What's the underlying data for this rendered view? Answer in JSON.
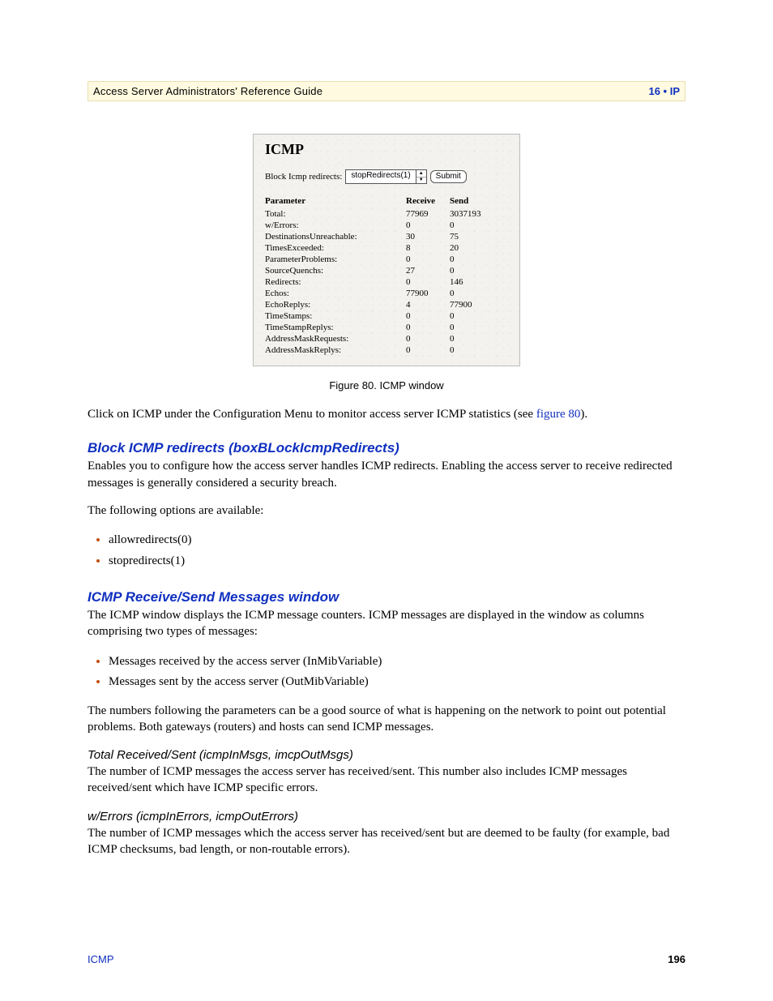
{
  "header": {
    "title": "Access Server Administrators' Reference Guide",
    "chapter": "16 • IP"
  },
  "figure": {
    "panel_title": "ICMP",
    "control_label": "Block Icmp redirects:",
    "select_value": "stopRedirects(1)",
    "submit_label": "Submit",
    "columns": {
      "param": "Parameter",
      "receive": "Receive",
      "send": "Send"
    },
    "rows": [
      {
        "param": "Total:",
        "receive": "77969",
        "send": "3037193"
      },
      {
        "param": "w/Errors:",
        "receive": "0",
        "send": "0"
      },
      {
        "param": "DestinationsUnreachable:",
        "receive": "30",
        "send": "75"
      },
      {
        "param": "TimesExceeded:",
        "receive": "8",
        "send": "20"
      },
      {
        "param": "ParameterProblems:",
        "receive": "0",
        "send": "0"
      },
      {
        "param": "SourceQuenchs:",
        "receive": "27",
        "send": "0"
      },
      {
        "param": "Redirects:",
        "receive": "0",
        "send": "146"
      },
      {
        "param": "Echos:",
        "receive": "77900",
        "send": "0"
      },
      {
        "param": "EchoReplys:",
        "receive": "4",
        "send": "77900"
      },
      {
        "param": "TimeStamps:",
        "receive": "0",
        "send": "0"
      },
      {
        "param": "TimeStampReplys:",
        "receive": "0",
        "send": "0"
      },
      {
        "param": "AddressMaskRequests:",
        "receive": "0",
        "send": "0"
      },
      {
        "param": "AddressMaskReplys:",
        "receive": "0",
        "send": "0"
      }
    ],
    "caption": "Figure 80. ICMP window"
  },
  "intro": {
    "prefix": "Click on ICMP under the ",
    "menu_label": "Configuration Menu",
    "mid": " to monitor access server ICMP statistics (see ",
    "link": "figure 80",
    "suffix": ")."
  },
  "section_block": {
    "heading": "Block ICMP redirects (boxBLockIcmpRedirects)",
    "para": "Enables you to configure how the access server handles ICMP redirects. Enabling the access server to receive redirected messages is generally considered a security breach.",
    "options_label": "The following options are available:",
    "options": [
      "allowredirects(0)",
      "stopredirects(1)"
    ]
  },
  "section_window": {
    "heading": "ICMP Receive/Send Messages window",
    "para": "The ICMP window displays the ICMP message counters. ICMP messages are displayed in the window as columns comprising two types of messages:",
    "items": [
      "Messages received by the access server (InMibVariable)",
      "Messages sent by the access server (OutMibVariable)"
    ],
    "para2": "The numbers following the parameters can be a good source of what is happening on the network to point out potential problems. Both gateways (routers) and hosts can send ICMP messages."
  },
  "sub_total": {
    "heading": "Total Received/Sent (icmpInMsgs, imcpOutMsgs)",
    "para": "The number of ICMP messages the access server has received/sent. This number also includes ICMP messages received/sent which have ICMP specific errors."
  },
  "sub_errors": {
    "heading": "w/Errors (icmpInErrors, icmpOutErrors)",
    "para": "The number of ICMP messages which the access server has received/sent but are deemed to be faulty (for example, bad ICMP checksums, bad length, or non-routable errors)."
  },
  "footer": {
    "left": "ICMP",
    "page": "196"
  }
}
